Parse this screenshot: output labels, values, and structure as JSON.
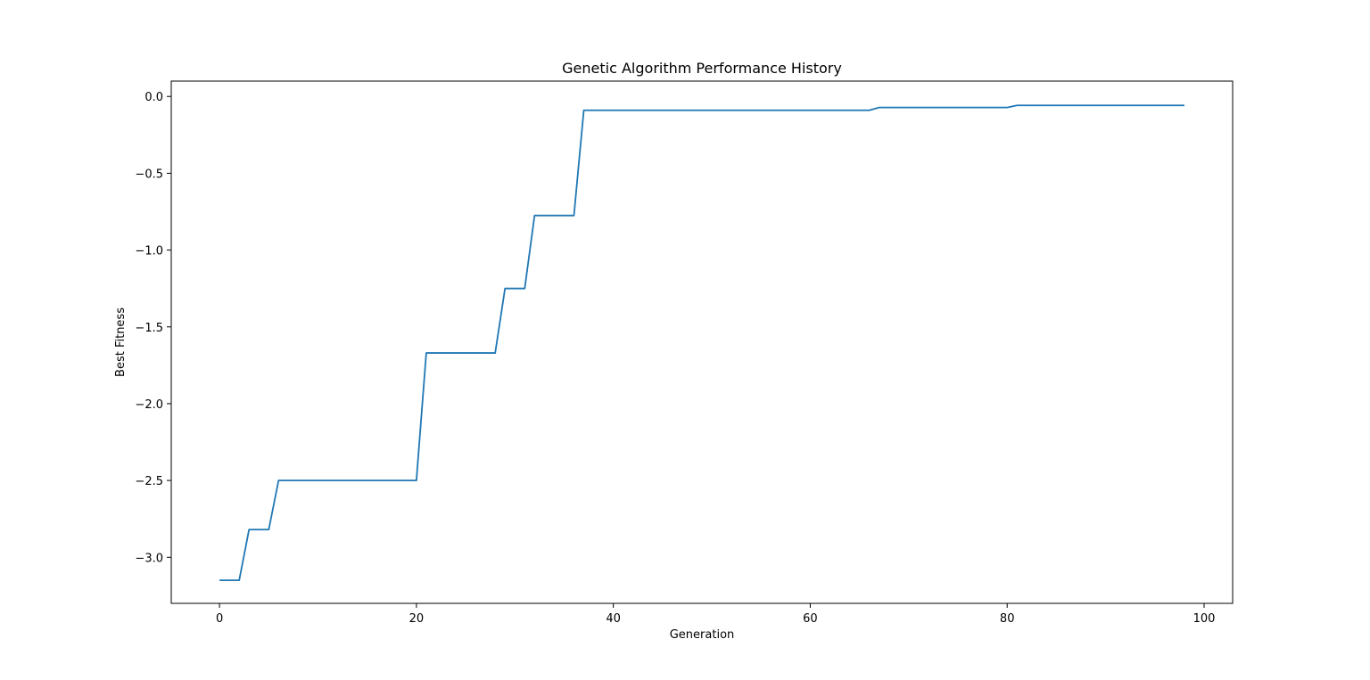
{
  "chart_data": {
    "type": "line",
    "title": "Genetic Algorithm Performance History",
    "xlabel": "Generation",
    "ylabel": "Best Fitness",
    "xlim": [
      -4.9,
      102.9
    ],
    "ylim": [
      -3.3,
      0.1
    ],
    "xticks": [
      0,
      20,
      40,
      60,
      80,
      100
    ],
    "yticks": [
      0.0,
      -0.5,
      -1.0,
      -1.5,
      -2.0,
      -2.5,
      -3.0
    ],
    "xtick_labels": [
      "0",
      "20",
      "40",
      "60",
      "80",
      "100"
    ],
    "ytick_labels": [
      "0.0",
      "−0.5",
      "−1.0",
      "−1.5",
      "−2.0",
      "−2.5",
      "−3.0"
    ],
    "grid": false,
    "line_color": "#1f77b4",
    "series": [
      {
        "x": [
          0,
          1,
          2,
          3,
          4,
          5,
          6,
          7,
          8,
          9,
          10,
          11,
          12,
          13,
          14,
          15,
          16,
          17,
          18,
          19,
          20,
          21,
          22,
          23,
          24,
          25,
          26,
          27,
          28,
          29,
          30,
          31,
          32,
          33,
          34,
          35,
          36,
          37,
          38,
          39,
          40,
          41,
          42,
          43,
          44,
          45,
          46,
          47,
          48,
          49,
          50,
          51,
          52,
          53,
          54,
          55,
          56,
          57,
          58,
          59,
          60,
          61,
          62,
          63,
          64,
          65,
          66,
          67,
          68,
          69,
          70,
          71,
          72,
          73,
          74,
          75,
          76,
          77,
          78,
          79,
          80,
          81,
          82,
          83,
          84,
          85,
          86,
          87,
          88,
          89,
          90,
          91,
          92,
          93,
          94,
          95,
          96,
          97,
          98
        ],
        "y": [
          -3.15,
          -3.15,
          -3.15,
          -2.82,
          -2.82,
          -2.82,
          -2.5,
          -2.5,
          -2.5,
          -2.5,
          -2.5,
          -2.5,
          -2.5,
          -2.5,
          -2.5,
          -2.5,
          -2.5,
          -2.5,
          -2.5,
          -2.5,
          -2.5,
          -1.67,
          -1.67,
          -1.67,
          -1.67,
          -1.67,
          -1.67,
          -1.67,
          -1.67,
          -1.25,
          -1.25,
          -1.25,
          -0.775,
          -0.775,
          -0.775,
          -0.775,
          -0.775,
          -0.09,
          -0.09,
          -0.09,
          -0.09,
          -0.09,
          -0.09,
          -0.09,
          -0.09,
          -0.09,
          -0.09,
          -0.09,
          -0.09,
          -0.09,
          -0.09,
          -0.09,
          -0.09,
          -0.09,
          -0.09,
          -0.09,
          -0.09,
          -0.09,
          -0.09,
          -0.09,
          -0.09,
          -0.09,
          -0.09,
          -0.09,
          -0.09,
          -0.09,
          -0.09,
          -0.072,
          -0.072,
          -0.072,
          -0.072,
          -0.072,
          -0.072,
          -0.072,
          -0.072,
          -0.072,
          -0.072,
          -0.072,
          -0.072,
          -0.072,
          -0.072,
          -0.058,
          -0.058,
          -0.058,
          -0.058,
          -0.058,
          -0.058,
          -0.058,
          -0.058,
          -0.058,
          -0.058,
          -0.058,
          -0.058,
          -0.058,
          -0.058,
          -0.058,
          -0.058,
          -0.058,
          -0.058
        ]
      }
    ]
  }
}
